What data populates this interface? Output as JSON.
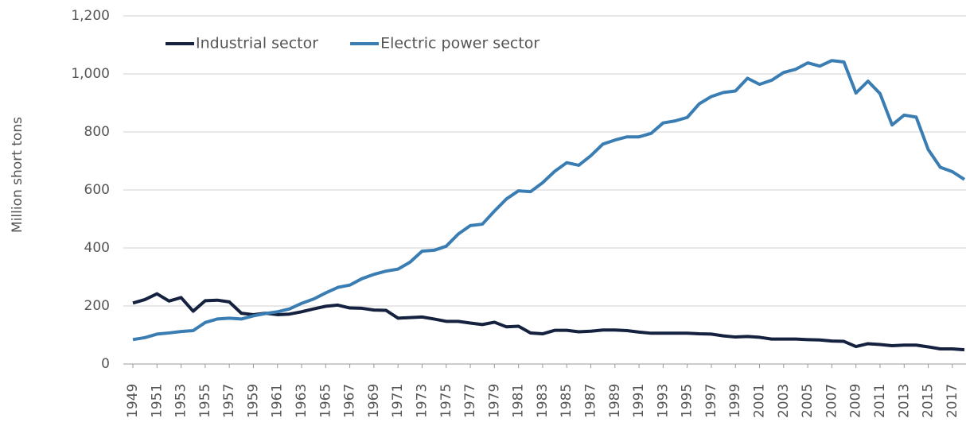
{
  "chart_data": {
    "type": "line",
    "y_label": "Million short tons",
    "x": [
      1949,
      1950,
      1951,
      1952,
      1953,
      1954,
      1955,
      1956,
      1957,
      1958,
      1959,
      1960,
      1961,
      1962,
      1963,
      1964,
      1965,
      1966,
      1967,
      1968,
      1969,
      1970,
      1971,
      1972,
      1973,
      1974,
      1975,
      1976,
      1977,
      1978,
      1979,
      1980,
      1981,
      1982,
      1983,
      1984,
      1985,
      1986,
      1987,
      1988,
      1989,
      1990,
      1991,
      1992,
      1993,
      1994,
      1995,
      1996,
      1997,
      1998,
      1999,
      2000,
      2001,
      2002,
      2003,
      2004,
      2005,
      2006,
      2007,
      2008,
      2009,
      2010,
      2011,
      2012,
      2013,
      2014,
      2015,
      2016,
      2017,
      2018
    ],
    "xlim": [
      1949,
      2018
    ],
    "xticks": [
      1949,
      1951,
      1953,
      1955,
      1957,
      1959,
      1961,
      1963,
      1965,
      1967,
      1969,
      1971,
      1973,
      1975,
      1977,
      1979,
      1981,
      1983,
      1985,
      1987,
      1989,
      1991,
      1993,
      1995,
      1997,
      1999,
      2001,
      2003,
      2005,
      2007,
      2009,
      2011,
      2013,
      2015,
      2017
    ],
    "ylim": [
      0,
      1200
    ],
    "yticks": [
      0,
      200,
      400,
      600,
      800,
      {
        "value": 1000,
        "label": "1,000"
      },
      {
        "value": 1200,
        "label": "1,200"
      }
    ],
    "grid": true,
    "legend": "top-left",
    "series": [
      {
        "name": "Industrial sector",
        "color": "#14213f",
        "values": [
          210,
          222,
          242,
          217,
          229,
          182,
          218,
          220,
          214,
          175,
          170,
          175,
          170,
          172,
          180,
          190,
          199,
          203,
          193,
          192,
          186,
          185,
          158,
          160,
          162,
          155,
          147,
          147,
          141,
          136,
          144,
          128,
          130,
          107,
          104,
          116,
          116,
          111,
          113,
          117,
          117,
          115,
          110,
          106,
          106,
          106,
          106,
          104,
          103,
          97,
          93,
          95,
          92,
          86,
          86,
          86,
          84,
          83,
          79,
          78,
          60,
          70,
          67,
          63,
          65,
          65,
          59,
          52,
          52,
          49
        ]
      },
      {
        "name": "Electric power sector",
        "color": "#3a7db3",
        "values": [
          84,
          91,
          103,
          107,
          112,
          115,
          143,
          155,
          158,
          155,
          166,
          174,
          180,
          190,
          209,
          224,
          245,
          264,
          272,
          294,
          309,
          320,
          327,
          351,
          389,
          392,
          406,
          448,
          477,
          482,
          527,
          569,
          597,
          594,
          625,
          664,
          694,
          685,
          718,
          758,
          772,
          783,
          783,
          795,
          831,
          838,
          850,
          897,
          922,
          936,
          941,
          985,
          964,
          978,
          1005,
          1016,
          1038,
          1027,
          1046,
          1041,
          934,
          975,
          932,
          824,
          858,
          851,
          739,
          678,
          663,
          636
        ]
      }
    ]
  }
}
